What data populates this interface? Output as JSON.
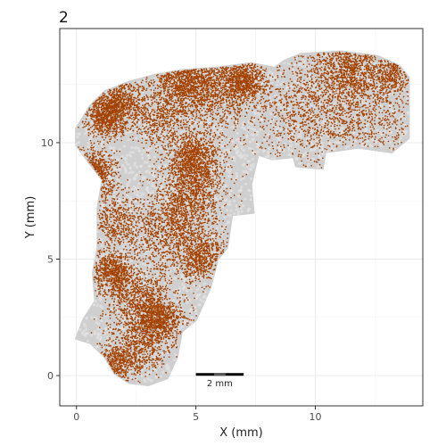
{
  "panel_tag": "2",
  "chart_data": {
    "type": "scatter",
    "xlabel": "X (mm)",
    "ylabel": "Y (mm)",
    "xlim": [
      -0.7,
      14.5
    ],
    "ylim": [
      -1.3,
      14.9
    ],
    "x_ticks": [
      0,
      5,
      10
    ],
    "y_ticks": [
      0,
      5,
      10
    ],
    "grid": true,
    "legend": "none",
    "colors": {
      "tissue": "#cfcfcf",
      "points": "#a44200",
      "grid_major": "#ebebeb",
      "grid_minor": "#f5f5f5",
      "border": "#333333"
    },
    "tissue_outline": [
      [
        0.0,
        1.6
      ],
      [
        0.6,
        1.4
      ],
      [
        1.2,
        0.8
      ],
      [
        1.6,
        0.1
      ],
      [
        2.2,
        -0.3
      ],
      [
        3.0,
        -0.4
      ],
      [
        3.8,
        -0.1
      ],
      [
        4.2,
        0.8
      ],
      [
        4.4,
        1.9
      ],
      [
        5.0,
        2.4
      ],
      [
        5.6,
        3.8
      ],
      [
        5.9,
        5.0
      ],
      [
        6.3,
        5.5
      ],
      [
        6.5,
        6.9
      ],
      [
        7.4,
        7.0
      ],
      [
        7.3,
        8.2
      ],
      [
        7.6,
        9.5
      ],
      [
        8.2,
        9.3
      ],
      [
        9.1,
        9.4
      ],
      [
        9.2,
        9.0
      ],
      [
        10.3,
        8.9
      ],
      [
        10.4,
        9.6
      ],
      [
        11.8,
        9.8
      ],
      [
        13.2,
        9.6
      ],
      [
        13.9,
        10.2
      ],
      [
        13.9,
        12.8
      ],
      [
        13.5,
        13.3
      ],
      [
        12.6,
        13.7
      ],
      [
        11.1,
        13.9
      ],
      [
        9.4,
        13.8
      ],
      [
        8.7,
        13.5
      ],
      [
        8.3,
        13.2
      ],
      [
        7.3,
        13.4
      ],
      [
        5.8,
        13.2
      ],
      [
        4.4,
        13.1
      ],
      [
        3.3,
        12.9
      ],
      [
        2.2,
        12.6
      ],
      [
        1.2,
        12.2
      ],
      [
        0.6,
        11.6
      ],
      [
        0.0,
        10.6
      ],
      [
        0.0,
        9.9
      ],
      [
        0.5,
        9.2
      ],
      [
        1.1,
        8.4
      ],
      [
        0.9,
        7.2
      ],
      [
        0.9,
        5.5
      ],
      [
        0.7,
        4.4
      ],
      [
        0.8,
        3.2
      ],
      [
        0.3,
        2.4
      ]
    ],
    "point_clusters": [
      {
        "x": 1.3,
        "y": 11.2,
        "sd": 0.45,
        "n": 900
      },
      {
        "x": 2.0,
        "y": 11.8,
        "sd": 0.5,
        "n": 500
      },
      {
        "x": 5.4,
        "y": 12.4,
        "sd": 0.9,
        "n": 1200
      },
      {
        "x": 4.3,
        "y": 12.9,
        "sd": 0.6,
        "n": 500
      },
      {
        "x": 7.0,
        "y": 12.6,
        "sd": 0.45,
        "n": 700
      },
      {
        "x": 3.5,
        "y": 11.0,
        "sd": 0.6,
        "n": 500
      },
      {
        "x": 4.9,
        "y": 9.4,
        "sd": 0.55,
        "n": 800
      },
      {
        "x": 4.8,
        "y": 8.3,
        "sd": 0.7,
        "n": 800
      },
      {
        "x": 4.6,
        "y": 6.8,
        "sd": 0.8,
        "n": 700
      },
      {
        "x": 5.3,
        "y": 5.0,
        "sd": 0.55,
        "n": 600
      },
      {
        "x": 3.7,
        "y": 5.9,
        "sd": 0.8,
        "n": 600
      },
      {
        "x": 1.7,
        "y": 6.6,
        "sd": 0.6,
        "n": 500
      },
      {
        "x": 1.5,
        "y": 4.4,
        "sd": 0.45,
        "n": 700
      },
      {
        "x": 2.5,
        "y": 3.2,
        "sd": 0.7,
        "n": 800
      },
      {
        "x": 3.4,
        "y": 2.4,
        "sd": 0.55,
        "n": 900
      },
      {
        "x": 2.8,
        "y": 1.2,
        "sd": 0.6,
        "n": 500
      },
      {
        "x": 1.6,
        "y": 0.5,
        "sd": 0.5,
        "n": 400
      },
      {
        "x": 0.6,
        "y": 8.6,
        "sd": 0.5,
        "n": 400
      },
      {
        "x": 9.6,
        "y": 11.5,
        "sd": 1.3,
        "n": 900
      },
      {
        "x": 12.0,
        "y": 11.2,
        "sd": 1.2,
        "n": 700
      },
      {
        "x": 11.5,
        "y": 13.4,
        "sd": 0.8,
        "n": 800
      },
      {
        "x": 13.2,
        "y": 12.9,
        "sd": 0.4,
        "n": 300
      }
    ],
    "background_points": 2600,
    "scale_bar": {
      "x_start": 5.0,
      "x_end": 7.0,
      "y": 0.05,
      "label": "2 mm"
    }
  }
}
